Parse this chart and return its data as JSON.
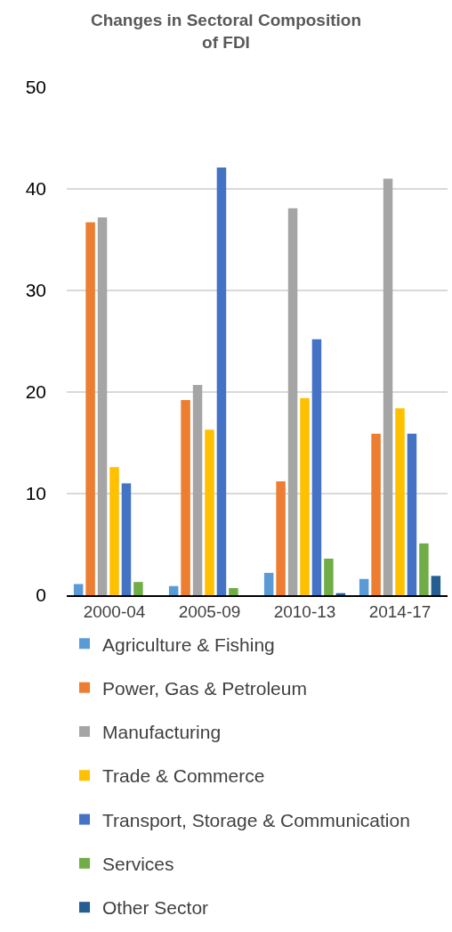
{
  "chart_data": {
    "type": "bar",
    "title": "Changes in Sectoral Composition of FDI",
    "categories": [
      "2000-04",
      "2005-09",
      "2010-13",
      "2014-17"
    ],
    "series": [
      {
        "name": "Agriculture & Fishing",
        "color": "#5b9bd5",
        "values": [
          1.1,
          0.9,
          2.2,
          1.6
        ]
      },
      {
        "name": "Power, Gas & Petroleum",
        "color": "#ed7d31",
        "values": [
          36.7,
          19.2,
          11.2,
          15.9
        ]
      },
      {
        "name": "Manufacturing",
        "color": "#a5a5a5",
        "values": [
          37.2,
          20.7,
          38.1,
          41.0
        ]
      },
      {
        "name": "Trade & Commerce",
        "color": "#ffc000",
        "values": [
          12.6,
          16.3,
          19.4,
          18.4
        ]
      },
      {
        "name": "Transport, Storage & Communication",
        "color": "#4472c4",
        "values": [
          11.0,
          42.1,
          25.2,
          15.9
        ]
      },
      {
        "name": "Services",
        "color": "#70ad47",
        "values": [
          1.3,
          0.7,
          3.6,
          5.1
        ]
      },
      {
        "name": "Other Sector",
        "color": "#255e91",
        "values": [
          0,
          0,
          0.2,
          1.9
        ]
      }
    ],
    "ylim": [
      0,
      50
    ],
    "yticks": [
      0,
      10,
      20,
      30,
      40,
      50
    ],
    "grid": "y",
    "legend": "bottom"
  }
}
